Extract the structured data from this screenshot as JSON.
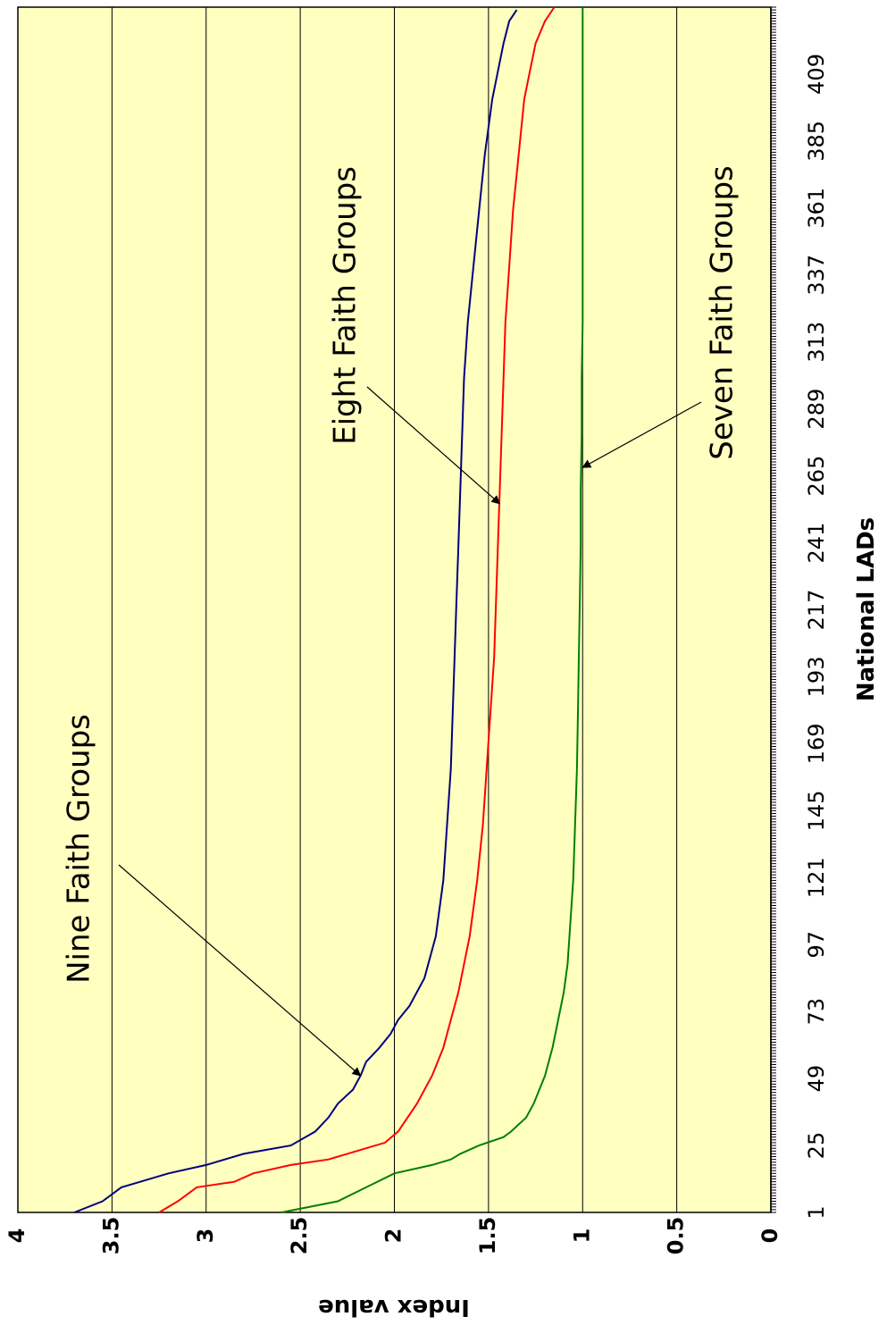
{
  "chart_data": {
    "type": "line",
    "title": "",
    "xlabel": "National LADs",
    "ylabel": "Index value",
    "xlim": [
      1,
      433
    ],
    "ylim": [
      0,
      4
    ],
    "grid": true,
    "x_ticks": [
      "1",
      "25",
      "49",
      "73",
      "97",
      "121",
      "145",
      "169",
      "193",
      "217",
      "241",
      "265",
      "289",
      "313",
      "337",
      "361",
      "385",
      "409"
    ],
    "y_ticks": [
      "0",
      "0.5",
      "1",
      "1.5",
      "2",
      "2.5",
      "3",
      "3.5",
      "4"
    ],
    "colors": {
      "plot_background": "#ffffc0",
      "nine": "#000080",
      "eight": "#ff0000",
      "seven": "#008000",
      "grid": "#000000"
    },
    "series": [
      {
        "name": "Nine Faith Groups",
        "color": "#000080",
        "x": [
          1,
          5,
          10,
          12,
          15,
          18,
          22,
          25,
          30,
          35,
          40,
          45,
          50,
          55,
          60,
          65,
          70,
          75,
          80,
          85,
          90,
          100,
          110,
          120,
          140,
          160,
          180,
          200,
          220,
          240,
          260,
          280,
          300,
          320,
          340,
          360,
          380,
          400,
          410,
          420,
          428,
          432
        ],
        "values": [
          3.7,
          3.55,
          3.45,
          3.35,
          3.2,
          3.0,
          2.8,
          2.55,
          2.42,
          2.35,
          2.3,
          2.22,
          2.18,
          2.15,
          2.08,
          2.02,
          1.98,
          1.92,
          1.88,
          1.84,
          1.82,
          1.78,
          1.76,
          1.74,
          1.72,
          1.7,
          1.69,
          1.68,
          1.67,
          1.66,
          1.65,
          1.64,
          1.63,
          1.61,
          1.58,
          1.55,
          1.52,
          1.48,
          1.45,
          1.42,
          1.39,
          1.35
        ]
      },
      {
        "name": "Eight Faith Groups",
        "color": "#ff0000",
        "x": [
          1,
          5,
          10,
          12,
          15,
          18,
          20,
          23,
          26,
          30,
          35,
          40,
          50,
          60,
          70,
          80,
          90,
          100,
          110,
          120,
          140,
          160,
          180,
          200,
          220,
          240,
          260,
          280,
          300,
          320,
          340,
          360,
          380,
          400,
          410,
          420,
          428,
          433
        ],
        "values": [
          3.25,
          3.15,
          3.05,
          2.85,
          2.75,
          2.55,
          2.35,
          2.2,
          2.05,
          1.98,
          1.93,
          1.88,
          1.8,
          1.74,
          1.7,
          1.66,
          1.63,
          1.6,
          1.58,
          1.56,
          1.53,
          1.51,
          1.49,
          1.47,
          1.46,
          1.45,
          1.44,
          1.43,
          1.42,
          1.41,
          1.39,
          1.37,
          1.34,
          1.31,
          1.28,
          1.25,
          1.2,
          1.15
        ]
      },
      {
        "name": "Seven Faith Groups",
        "color": "#008000",
        "x": [
          1,
          5,
          10,
          15,
          18,
          20,
          22,
          25,
          28,
          30,
          35,
          40,
          50,
          60,
          70,
          80,
          90,
          100,
          110,
          120,
          140,
          160,
          180,
          200,
          220,
          240,
          260,
          280,
          300,
          320,
          340,
          360,
          380,
          400,
          420,
          433
        ],
        "values": [
          2.6,
          2.3,
          2.15,
          2.0,
          1.8,
          1.7,
          1.65,
          1.55,
          1.42,
          1.38,
          1.3,
          1.26,
          1.2,
          1.16,
          1.13,
          1.1,
          1.08,
          1.07,
          1.06,
          1.05,
          1.04,
          1.03,
          1.025,
          1.02,
          1.015,
          1.01,
          1.01,
          1.005,
          1.005,
          1.0,
          1.0,
          1.0,
          1.0,
          1.0,
          1.0,
          1.0
        ]
      }
    ],
    "annotations": [
      {
        "text": "Nine Faith Groups",
        "points_to_series": "Nine Faith Groups",
        "arrow_target": {
          "x": 50,
          "y": 2.18
        }
      },
      {
        "text": "Eight Faith Groups",
        "points_to_series": "Eight Faith Groups",
        "arrow_target": {
          "x": 255,
          "y": 1.44
        }
      },
      {
        "text": "Seven Faith Groups",
        "points_to_series": "Seven Faith Groups",
        "arrow_target": {
          "x": 268,
          "y": 1.0
        }
      }
    ]
  }
}
